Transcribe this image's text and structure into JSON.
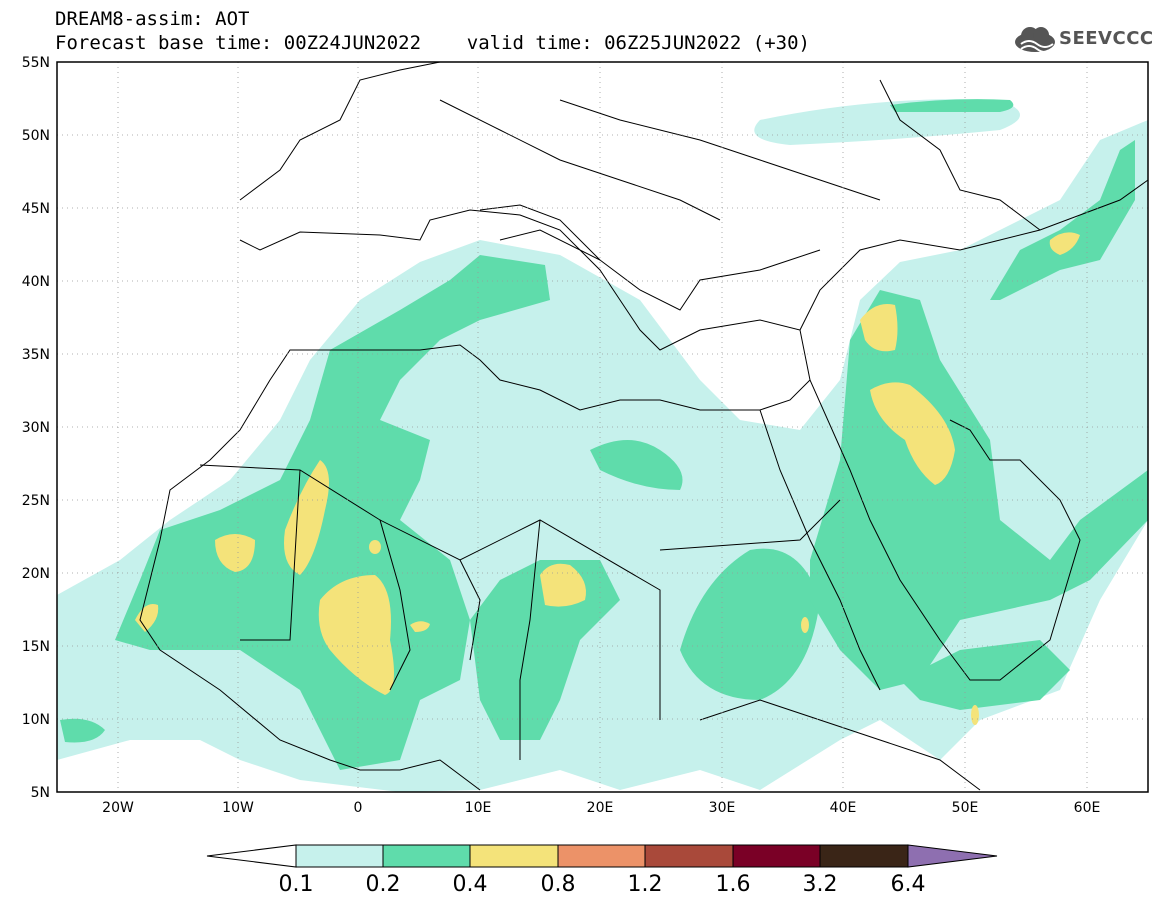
{
  "header": {
    "line1": "DREAM8-assim: AOT",
    "line2": "Forecast base time: 00Z24JUN2022    valid time: 06Z25JUN2022 (+30)"
  },
  "logo": {
    "text": "SEEVCCC",
    "icon": "cloud-logo-icon",
    "color": "#555555"
  },
  "map": {
    "lon_range": [
      -25,
      65
    ],
    "lat_range": [
      5,
      55
    ],
    "lon_ticks": [
      "20W",
      "10W",
      "0",
      "10E",
      "20E",
      "30E",
      "40E",
      "50E",
      "60E"
    ],
    "lat_ticks": [
      "55N",
      "50N",
      "45N",
      "40N",
      "35N",
      "30N",
      "25N",
      "20N",
      "15N",
      "10N",
      "5N"
    ]
  },
  "colorbar": {
    "labels": [
      "0.1",
      "0.2",
      "0.4",
      "0.8",
      "1.2",
      "1.6",
      "3.2",
      "6.4"
    ],
    "colors": [
      "#c6f1ec",
      "#5fdcab",
      "#f4e37a",
      "#ec9268",
      "#a9493a",
      "#7a0026",
      "#3a2517",
      "#8e6fb0"
    ]
  }
}
